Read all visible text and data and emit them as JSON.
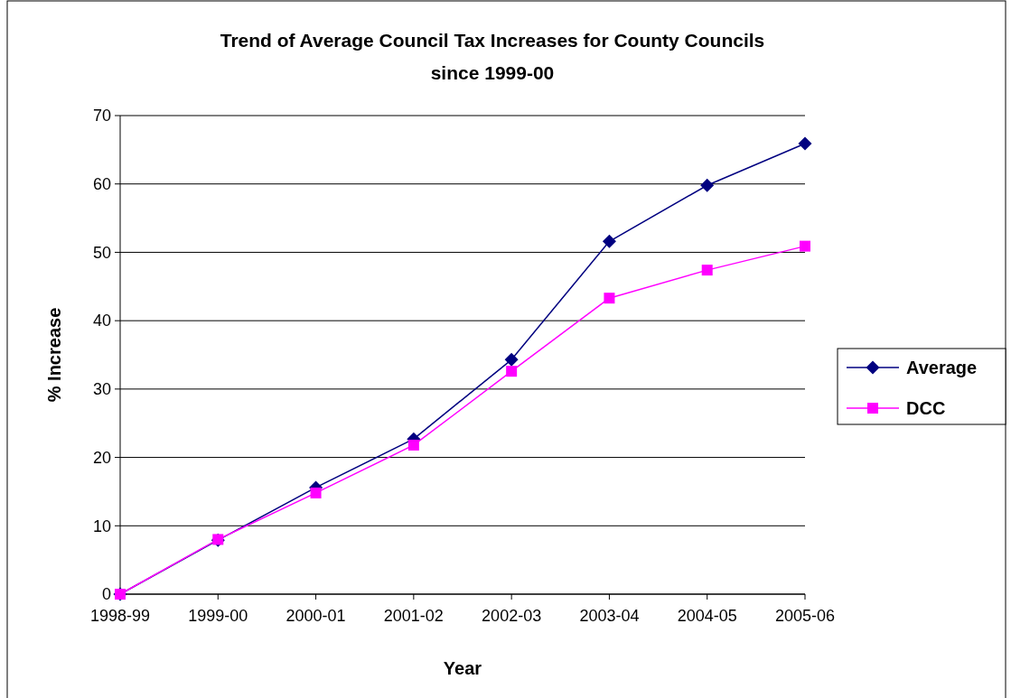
{
  "chart_data": {
    "type": "line",
    "title": "Trend of Average Council Tax Increases for County Councils\nsince 1999-00",
    "xlabel": "Year",
    "ylabel": "% Increase",
    "categories": [
      "1998-99",
      "1999-00",
      "2000-01",
      "2001-02",
      "2002-03",
      "2003-04",
      "2004-05",
      "2005-06"
    ],
    "series": [
      {
        "name": "Average",
        "color": "#000080",
        "marker": "diamond",
        "values": [
          0,
          7.9,
          15.6,
          22.7,
          34.3,
          51.6,
          59.8,
          65.9
        ]
      },
      {
        "name": "DCC",
        "color": "#ff00ff",
        "marker": "square",
        "values": [
          0,
          8,
          14.8,
          21.8,
          32.6,
          43.3,
          47.4,
          50.9
        ]
      }
    ],
    "ylim": [
      0,
      70
    ],
    "yticks": [
      0,
      10,
      20,
      30,
      40,
      50,
      60,
      70
    ],
    "grid": "y",
    "legend": "right",
    "line_style": "solid"
  }
}
